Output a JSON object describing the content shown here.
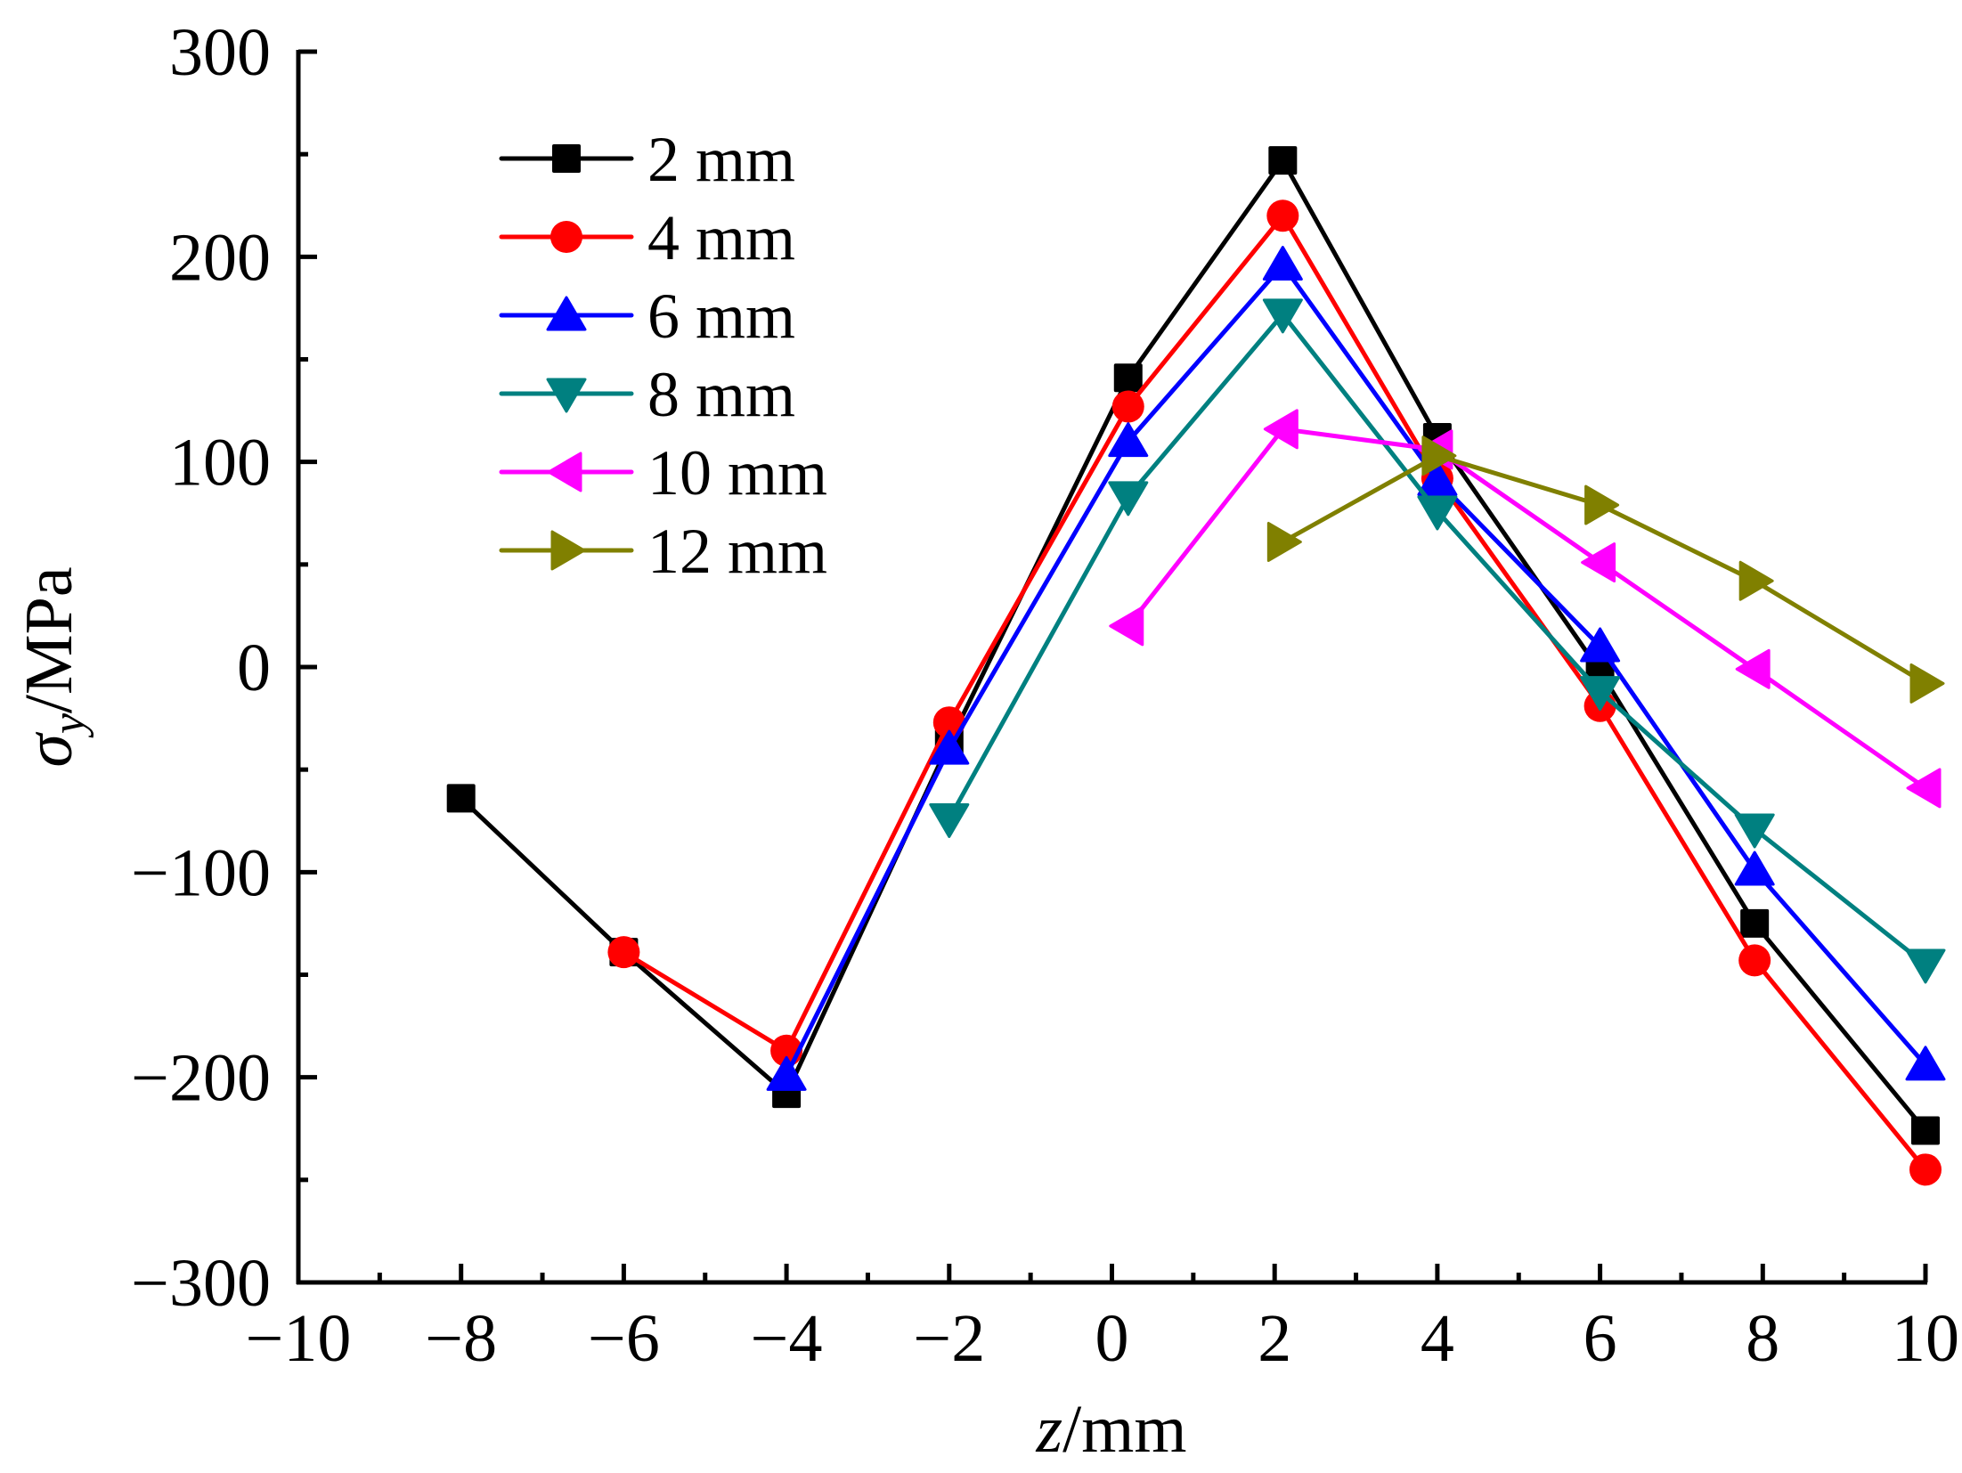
{
  "chart_data": {
    "type": "line",
    "title": "",
    "xlabel": {
      "italic": "z",
      "rest": "/mm"
    },
    "ylabel": {
      "italic": "σ",
      "sub": "y",
      "rest": "/MPa"
    },
    "xlim": [
      -10,
      10
    ],
    "ylim": [
      -300,
      300
    ],
    "xticks": [
      -10,
      -8,
      -6,
      -4,
      -2,
      0,
      2,
      4,
      6,
      8,
      10
    ],
    "xtick_labels": [
      "−10",
      "−8",
      "−6",
      "−4",
      "−2",
      "0",
      "2",
      "4",
      "6",
      "8",
      "10"
    ],
    "yticks": [
      -300,
      -200,
      -100,
      0,
      100,
      200,
      300
    ],
    "ytick_labels": [
      "−300",
      "−200",
      "−100",
      "0",
      "100",
      "200",
      "300"
    ],
    "x_minor_step": 1,
    "y_minor_step": 50,
    "grid": false,
    "legend_position": "top-left",
    "series": [
      {
        "name": "2 mm",
        "color": "#000000",
        "marker": "square",
        "x": [
          -8,
          -6,
          -4,
          -2,
          0.2,
          2.1,
          4,
          6,
          7.9,
          10
        ],
        "y": [
          -64,
          -139,
          -208,
          -37,
          141,
          247,
          112,
          -2,
          -125,
          -226
        ]
      },
      {
        "name": "4 mm",
        "color": "#ff0000",
        "marker": "circle",
        "x": [
          -6,
          -4,
          -2,
          0.2,
          2.1,
          4,
          6,
          7.9,
          10
        ],
        "y": [
          -139,
          -187,
          -27,
          127,
          220,
          92,
          -19,
          -143,
          -245
        ]
      },
      {
        "name": "6 mm",
        "color": "#0000ff",
        "marker": "triangle-up",
        "x": [
          -4,
          -2,
          0.2,
          2.1,
          4,
          6,
          7.9,
          10
        ],
        "y": [
          -199,
          -40,
          110,
          196,
          91,
          10,
          -99,
          -194
        ]
      },
      {
        "name": "8 mm",
        "color": "#008080",
        "marker": "triangle-down",
        "x": [
          -2,
          0.2,
          2.1,
          4,
          6,
          7.9,
          10
        ],
        "y": [
          -74,
          83,
          172,
          76,
          -12,
          -79,
          -145
        ]
      },
      {
        "name": "10 mm",
        "color": "#ff00ff",
        "marker": "triangle-left",
        "x": [
          0.2,
          2.1,
          4,
          6,
          7.9,
          10
        ],
        "y": [
          20,
          116,
          106,
          51,
          -1,
          -59
        ]
      },
      {
        "name": "12 mm",
        "color": "#808000",
        "marker": "triangle-right",
        "x": [
          2.1,
          4,
          6,
          7.9,
          10
        ],
        "y": [
          61,
          103,
          79,
          42,
          -8
        ]
      }
    ]
  }
}
